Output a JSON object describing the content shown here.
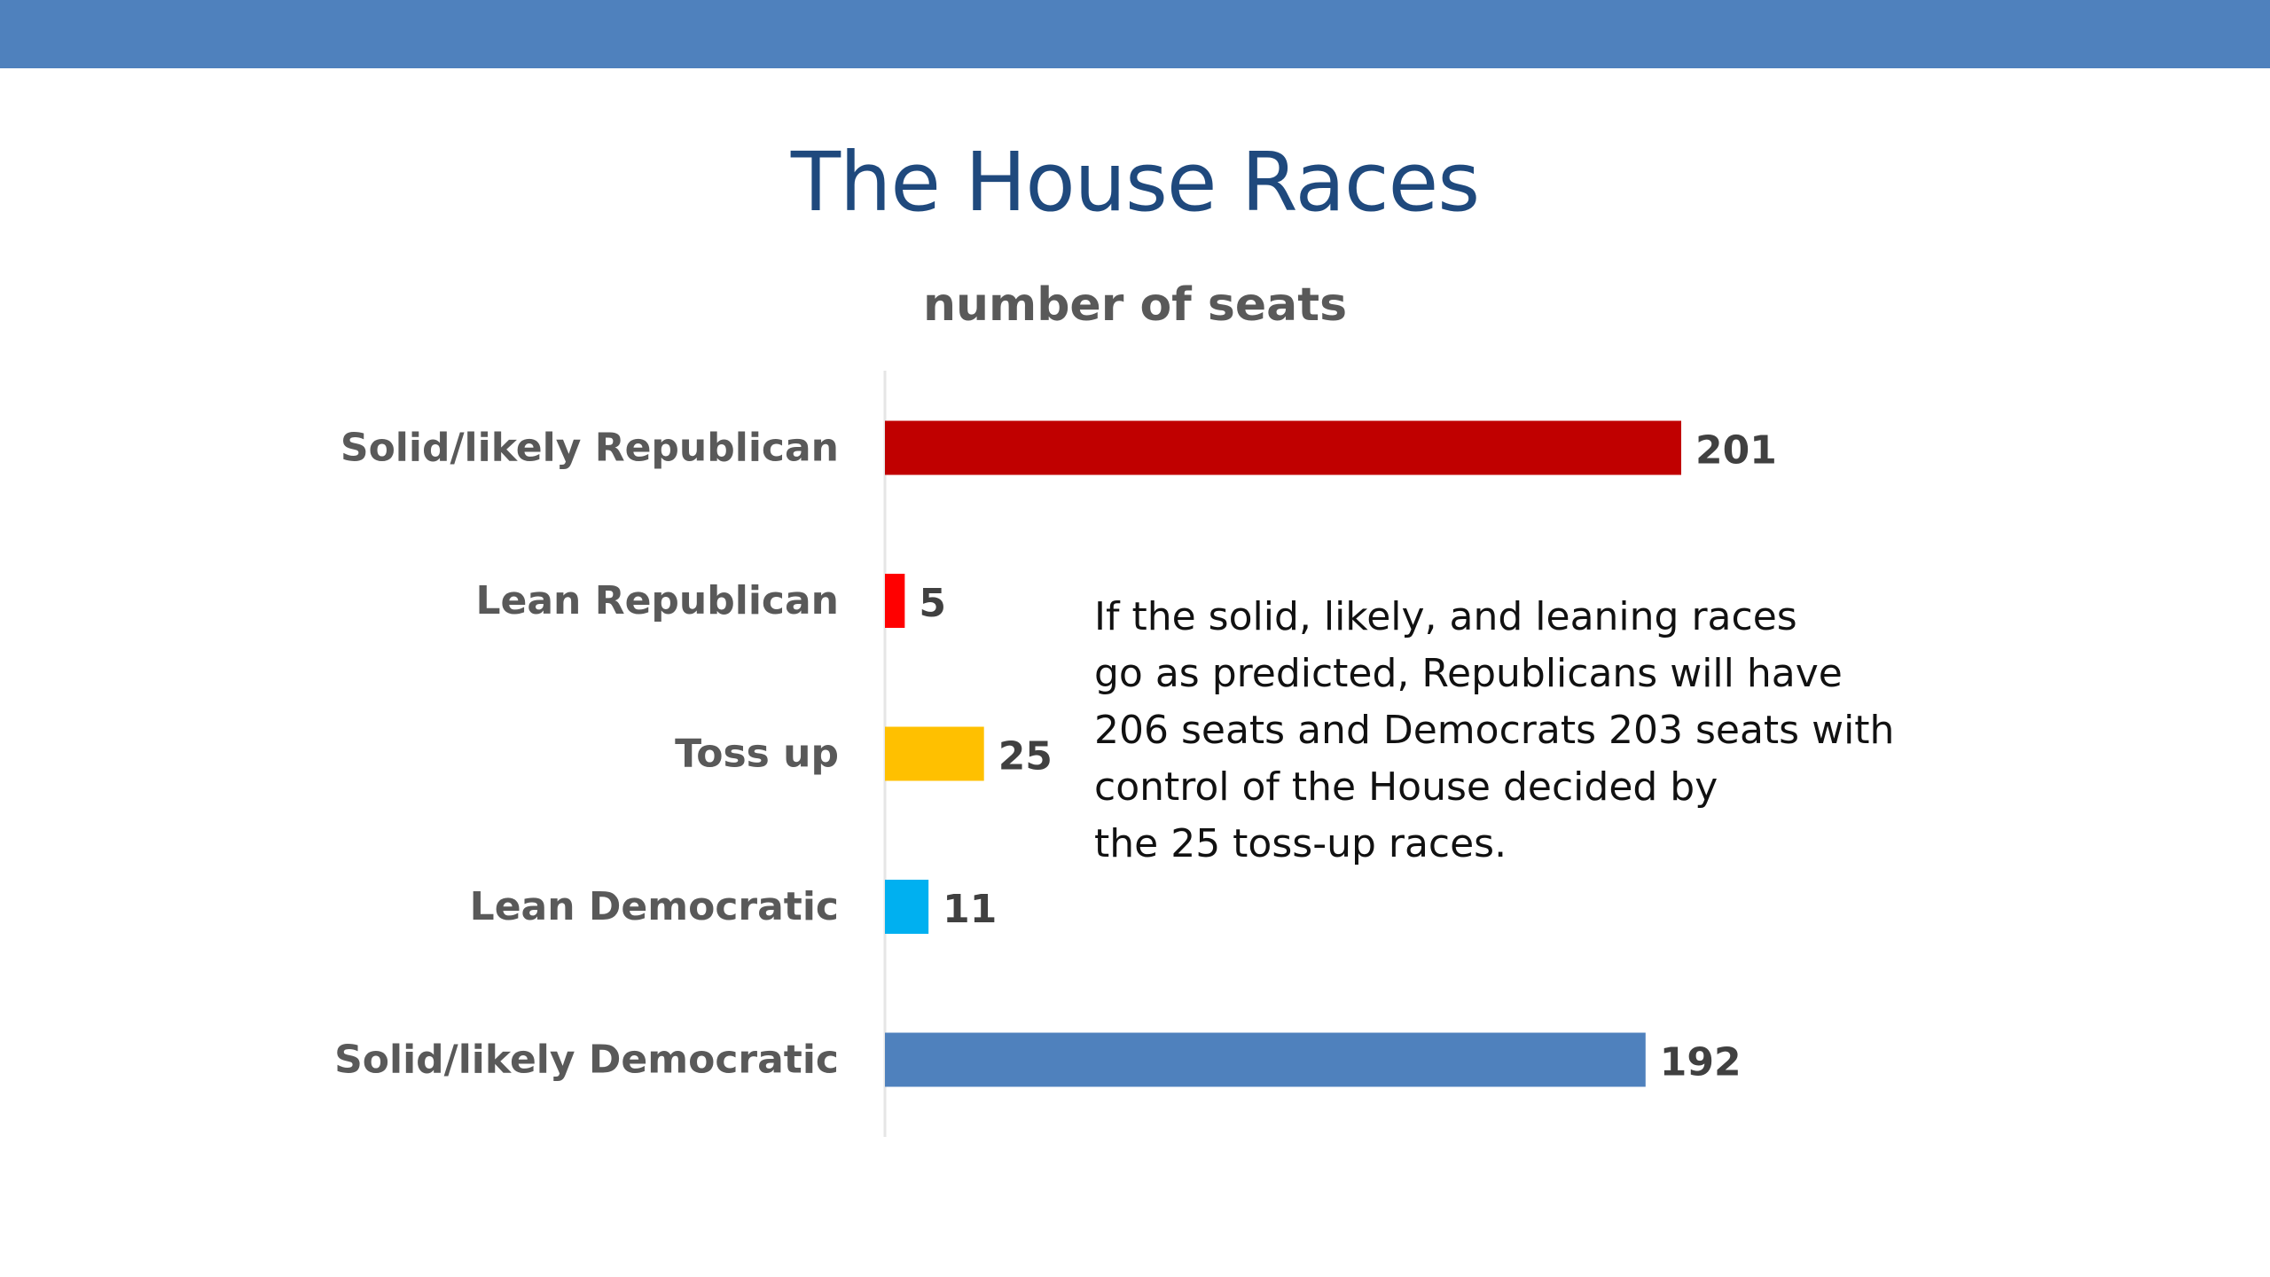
{
  "header": {
    "title": "The House Races",
    "subtitle": "number of seats"
  },
  "annotation": {
    "lines": [
      "If the solid, likely, and leaning races",
      "go as predicted, Republicans will have",
      "206 seats and Democrats 203 seats with",
      "control of the House decided by",
      "the 25 toss-up races."
    ]
  },
  "colors": {
    "band": "#4f81bd",
    "title": "#1f497d"
  },
  "chart_data": {
    "type": "bar",
    "orientation": "horizontal",
    "title": "The House Races",
    "subtitle": "number of seats",
    "xlabel": "",
    "ylabel": "",
    "grid": false,
    "legend": "none",
    "xlim": [
      0,
      201
    ],
    "categories": [
      "Solid/likely Republican",
      "Lean Republican",
      "Toss up",
      "Lean Democratic",
      "Solid/likely Democratic"
    ],
    "values": [
      201,
      5,
      25,
      11,
      192
    ],
    "colors": [
      "#c00000",
      "#ff0000",
      "#ffc000",
      "#00b0f0",
      "#4f81bd"
    ]
  }
}
